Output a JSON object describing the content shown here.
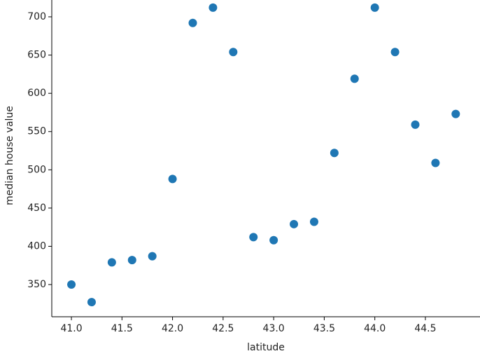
{
  "chart_data": {
    "type": "scatter",
    "x_label": "latitude",
    "y_label": "median house value",
    "x": [
      41.0,
      41.2,
      41.4,
      41.6,
      41.8,
      42.0,
      42.2,
      42.4,
      42.6,
      42.8,
      43.0,
      43.2,
      43.4,
      43.6,
      43.8,
      44.0,
      44.2,
      44.4,
      44.6,
      44.8
    ],
    "values": [
      350,
      327,
      379,
      382,
      387,
      488,
      692,
      712,
      654,
      412,
      408,
      429,
      432,
      522,
      619,
      712,
      654,
      559,
      509,
      573
    ],
    "color": "#1f77b4",
    "xlim": [
      40.806,
      45.04
    ],
    "ylim": [
      307.9,
      722
    ],
    "xticks": [
      {
        "value": 41.0,
        "label": "41.0"
      },
      {
        "value": 41.5,
        "label": "41.5"
      },
      {
        "value": 42.0,
        "label": "42.0"
      },
      {
        "value": 42.5,
        "label": "42.5"
      },
      {
        "value": 43.0,
        "label": "43.0"
      },
      {
        "value": 43.5,
        "label": "43.5"
      },
      {
        "value": 44.0,
        "label": "44.0"
      },
      {
        "value": 44.5,
        "label": "44.5"
      }
    ],
    "yticks": [
      350,
      400,
      450,
      500,
      550,
      600,
      650,
      700
    ]
  }
}
